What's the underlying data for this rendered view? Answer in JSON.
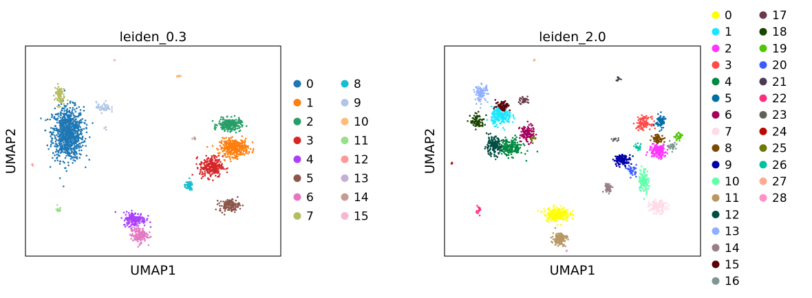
{
  "figure": {
    "panels": [
      {
        "title": "leiden_0.3",
        "xlabel": "UMAP1",
        "ylabel": "UMAP2",
        "legend_labels": [
          "0",
          "1",
          "2",
          "3",
          "4",
          "5",
          "6",
          "7",
          "8",
          "9",
          "10",
          "11",
          "12",
          "13",
          "14",
          "15"
        ],
        "legend_colors": [
          "#1f77b4",
          "#ff7f0e",
          "#279e68",
          "#d62728",
          "#aa40fc",
          "#8c564b",
          "#e377c2",
          "#b5bd61",
          "#17becf",
          "#aec7e8",
          "#ffbb78",
          "#98df8a",
          "#ff9896",
          "#c5b0d5",
          "#c49c94",
          "#f7b6d2"
        ]
      },
      {
        "title": "leiden_2.0",
        "xlabel": "UMAP1",
        "ylabel": "UMAP2",
        "legend_labels": [
          "0",
          "1",
          "2",
          "3",
          "4",
          "5",
          "6",
          "7",
          "8",
          "9",
          "10",
          "11",
          "12",
          "13",
          "14",
          "15",
          "16",
          "17",
          "18",
          "19",
          "20",
          "21",
          "22",
          "23",
          "24",
          "25",
          "26",
          "27",
          "28"
        ],
        "legend_colors": [
          "#ffff00",
          "#1ce6ff",
          "#ff34ff",
          "#ff4a46",
          "#008941",
          "#006fa6",
          "#a30059",
          "#ffdbe5",
          "#7a4900",
          "#0000a6",
          "#63ffac",
          "#b79762",
          "#004d43",
          "#8fb0ff",
          "#997d87",
          "#5a0007",
          "#809693",
          "#6a3a4c",
          "#1b4400",
          "#4fc601",
          "#3b5dff",
          "#4a3b53",
          "#ff2f80",
          "#61615a",
          "#ba0900",
          "#6b7900",
          "#00c2a0",
          "#ffaa92",
          "#ff90c9"
        ]
      }
    ]
  },
  "chart_data": [
    {
      "type": "scatter",
      "title": "leiden_0.3",
      "xlabel": "UMAP1",
      "ylabel": "UMAP2",
      "grid": false,
      "legend": "right",
      "clusters": [
        {
          "name": "0",
          "center": [
            3.0,
            7.0
          ],
          "spread": [
            1.1,
            1.5
          ],
          "count": 900
        },
        {
          "name": "1",
          "center": [
            14.7,
            6.2
          ],
          "spread": [
            1.0,
            0.5
          ],
          "count": 350
        },
        {
          "name": "2",
          "center": [
            14.4,
            7.5
          ],
          "spread": [
            0.8,
            0.35
          ],
          "count": 250
        },
        {
          "name": "3",
          "center": [
            13.1,
            5.1
          ],
          "spread": [
            0.8,
            0.6
          ],
          "count": 260
        },
        {
          "name": "4",
          "center": [
            7.7,
            2.1
          ],
          "spread": [
            0.8,
            0.4
          ],
          "count": 170
        },
        {
          "name": "5",
          "center": [
            14.4,
            2.9
          ],
          "spread": [
            0.7,
            0.35
          ],
          "count": 130
        },
        {
          "name": "6",
          "center": [
            8.0,
            1.2
          ],
          "spread": [
            0.6,
            0.45
          ],
          "count": 130
        },
        {
          "name": "7",
          "center": [
            2.4,
            9.2
          ],
          "spread": [
            0.35,
            0.6
          ],
          "count": 80
        },
        {
          "name": "8",
          "center": [
            11.5,
            4.0
          ],
          "spread": [
            0.3,
            0.25
          ],
          "count": 50
        },
        {
          "name": "9",
          "center": [
            5.5,
            8.5
          ],
          "spread": [
            0.5,
            0.3
          ],
          "count": 50
        },
        {
          "name": "10",
          "center": [
            10.8,
            10.3
          ],
          "spread": [
            0.15,
            0.1
          ],
          "count": 10
        },
        {
          "name": "11",
          "center": [
            2.3,
            2.7
          ],
          "spread": [
            0.2,
            0.3
          ],
          "count": 15
        },
        {
          "name": "12",
          "center": [
            0.5,
            5.2
          ],
          "spread": [
            0.08,
            0.05
          ],
          "count": 4
        },
        {
          "name": "13",
          "center": [
            5.6,
            7.3
          ],
          "spread": [
            0.1,
            0.1
          ],
          "count": 3
        },
        {
          "name": "14",
          "center": [
            11.9,
            6.7
          ],
          "spread": [
            0.15,
            0.08
          ],
          "count": 6
        },
        {
          "name": "15",
          "center": [
            6.3,
            11.2
          ],
          "spread": [
            0.05,
            0.03
          ],
          "count": 3
        }
      ]
    },
    {
      "type": "scatter",
      "title": "leiden_2.0",
      "xlabel": "UMAP1",
      "ylabel": "UMAP2",
      "grid": false,
      "legend": "right",
      "clusters": [
        {
          "name": "0",
          "center": [
            7.9,
            2.4
          ],
          "spread": [
            0.9,
            0.4
          ],
          "count": 220
        },
        {
          "name": "1",
          "center": [
            4.0,
            8.0
          ],
          "spread": [
            0.7,
            0.5
          ],
          "count": 220
        },
        {
          "name": "2",
          "center": [
            15.0,
            6.0
          ],
          "spread": [
            0.6,
            0.4
          ],
          "count": 170
        },
        {
          "name": "3",
          "center": [
            14.0,
            7.6
          ],
          "spread": [
            0.5,
            0.35
          ],
          "count": 110
        },
        {
          "name": "4",
          "center": [
            4.6,
            6.2
          ],
          "spread": [
            0.9,
            0.5
          ],
          "count": 200
        },
        {
          "name": "5",
          "center": [
            15.2,
            7.7
          ],
          "spread": [
            0.35,
            0.4
          ],
          "count": 80
        },
        {
          "name": "6",
          "center": [
            5.8,
            7.0
          ],
          "spread": [
            0.5,
            0.5
          ],
          "count": 110
        },
        {
          "name": "7",
          "center": [
            15.0,
            2.8
          ],
          "spread": [
            0.6,
            0.35
          ],
          "count": 130
        },
        {
          "name": "8",
          "center": [
            15.0,
            6.7
          ],
          "spread": [
            0.4,
            0.25
          ],
          "count": 60
        },
        {
          "name": "9",
          "center": [
            12.5,
            5.5
          ],
          "spread": [
            0.6,
            0.3
          ],
          "count": 110
        },
        {
          "name": "10",
          "center": [
            14.0,
            4.3
          ],
          "spread": [
            0.35,
            0.7
          ],
          "count": 110
        },
        {
          "name": "11",
          "center": [
            8.1,
            1.0
          ],
          "spread": [
            0.5,
            0.4
          ],
          "count": 120
        },
        {
          "name": "12",
          "center": [
            3.4,
            6.3
          ],
          "spread": [
            0.6,
            0.5
          ],
          "count": 140
        },
        {
          "name": "13",
          "center": [
            2.6,
            9.3
          ],
          "spread": [
            0.45,
            0.5
          ],
          "count": 90
        },
        {
          "name": "14",
          "center": [
            11.5,
            3.9
          ],
          "spread": [
            0.3,
            0.25
          ],
          "count": 45
        },
        {
          "name": "15",
          "center": [
            4.1,
            8.6
          ],
          "spread": [
            0.5,
            0.3
          ],
          "count": 70
        },
        {
          "name": "16",
          "center": [
            16.0,
            6.3
          ],
          "spread": [
            0.3,
            0.2
          ],
          "count": 30
        },
        {
          "name": "17",
          "center": [
            5.6,
            8.9
          ],
          "spread": [
            0.35,
            0.25
          ],
          "count": 40
        },
        {
          "name": "18",
          "center": [
            2.3,
            7.7
          ],
          "spread": [
            0.5,
            0.4
          ],
          "count": 90
        },
        {
          "name": "19",
          "center": [
            16.5,
            6.8
          ],
          "spread": [
            0.3,
            0.2
          ],
          "count": 30
        },
        {
          "name": "20",
          "center": [
            13.2,
            4.9
          ],
          "spread": [
            0.3,
            0.3
          ],
          "count": 40
        },
        {
          "name": "21",
          "center": [
            12.2,
            10.1
          ],
          "spread": [
            0.15,
            0.15
          ],
          "count": 10
        },
        {
          "name": "22",
          "center": [
            2.4,
            2.6
          ],
          "spread": [
            0.2,
            0.3
          ],
          "count": 15
        },
        {
          "name": "23",
          "center": [
            12.0,
            6.7
          ],
          "spread": [
            0.3,
            0.12
          ],
          "count": 10
        },
        {
          "name": "24",
          "center": [
            0.5,
            5.3
          ],
          "spread": [
            0.08,
            0.05
          ],
          "count": 4
        },
        {
          "name": "25",
          "center": [
            6.2,
            6.7
          ],
          "spread": [
            0.2,
            0.2
          ],
          "count": 10
        },
        {
          "name": "26",
          "center": [
            13.6,
            6.2
          ],
          "spread": [
            0.3,
            0.2
          ],
          "count": 20
        },
        {
          "name": "27",
          "center": [
            6.3,
            11.2
          ],
          "spread": [
            0.05,
            0.03
          ],
          "count": 3
        },
        {
          "name": "28",
          "center": [
            8.6,
            0.3
          ],
          "spread": [
            0.05,
            0.03
          ],
          "count": 3
        }
      ]
    }
  ]
}
